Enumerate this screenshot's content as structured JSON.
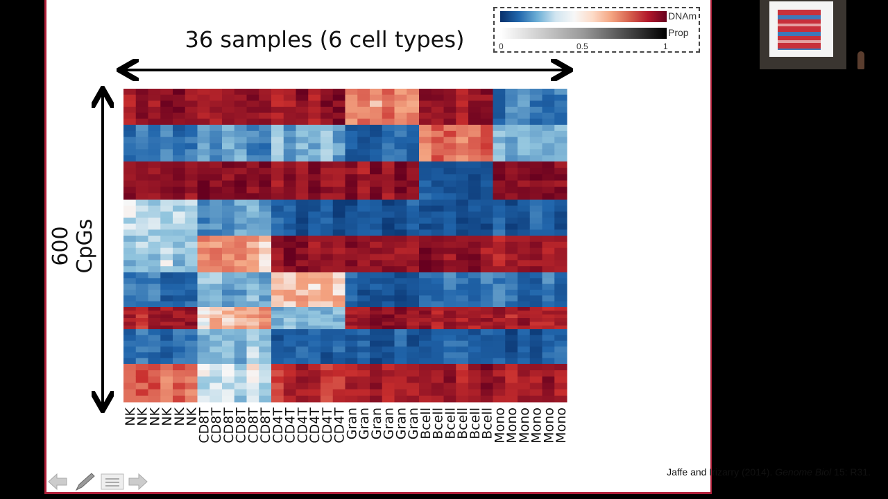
{
  "slide": {
    "title": "36 samples (6 cell types)",
    "ylabel": "600 CpGs",
    "citation": {
      "authors": "Jaffe and Irizarry (2014). ",
      "journal": "Genome Biol",
      "ref": " 15: R31."
    }
  },
  "legend": {
    "label_dnam": "DNAm",
    "label_prop": "Prop",
    "ticks": [
      "0",
      "0.5",
      "1"
    ]
  },
  "nav": {
    "icons": [
      "arrow-left-icon",
      "pen-icon",
      "menu-icon",
      "arrow-right-icon"
    ]
  },
  "chart_data": {
    "type": "heatmap",
    "title": "36 samples (6 cell types)",
    "ylabel": "600 CpGs",
    "colorbar": {
      "label": "DNAm",
      "range": [
        0,
        1
      ],
      "ticks": [
        "0",
        "0.5",
        "1"
      ],
      "colors": [
        "#08306b",
        "#2166ac",
        "#f7f7f7",
        "#b2182b",
        "#67001f"
      ]
    },
    "cell_types": [
      "NK",
      "CD8T",
      "CD4T",
      "Gran",
      "Bcell",
      "Mono"
    ],
    "samples_per_type": 6,
    "column_labels": [
      "NK",
      "NK",
      "NK",
      "NK",
      "NK",
      "NK",
      "CD8T",
      "CD8T",
      "CD8T",
      "CD8T",
      "CD8T",
      "CD8T",
      "CD4T",
      "CD4T",
      "CD4T",
      "CD4T",
      "CD4T",
      "CD4T",
      "Gran",
      "Gran",
      "Gran",
      "Gran",
      "Gran",
      "Gran",
      "Bcell",
      "Bcell",
      "Bcell",
      "Bcell",
      "Bcell",
      "Bcell",
      "Mono",
      "Mono",
      "Mono",
      "Mono",
      "Mono",
      "Mono"
    ],
    "row_blocks": [
      {
        "weight": 52,
        "values": [
          0.9,
          0.92,
          0.9,
          0.65,
          0.9,
          0.25
        ]
      },
      {
        "weight": 53,
        "values": [
          0.2,
          0.3,
          0.35,
          0.2,
          0.68,
          0.35
        ]
      },
      {
        "weight": 55,
        "values": [
          0.92,
          0.92,
          0.92,
          0.92,
          0.15,
          0.92
        ]
      },
      {
        "weight": 52,
        "values": [
          0.45,
          0.33,
          0.15,
          0.15,
          0.15,
          0.15
        ]
      },
      {
        "weight": 53,
        "values": [
          0.4,
          0.62,
          0.9,
          0.9,
          0.9,
          0.9
        ]
      },
      {
        "weight": 50,
        "values": [
          0.2,
          0.35,
          0.58,
          0.15,
          0.25,
          0.2
        ]
      },
      {
        "weight": 32,
        "values": [
          0.85,
          0.58,
          0.35,
          0.88,
          0.88,
          0.85
        ]
      },
      {
        "weight": 50,
        "values": [
          0.2,
          0.38,
          0.15,
          0.15,
          0.15,
          0.15
        ]
      },
      {
        "weight": 55,
        "values": [
          0.72,
          0.45,
          0.82,
          0.88,
          0.88,
          0.88
        ]
      }
    ]
  }
}
